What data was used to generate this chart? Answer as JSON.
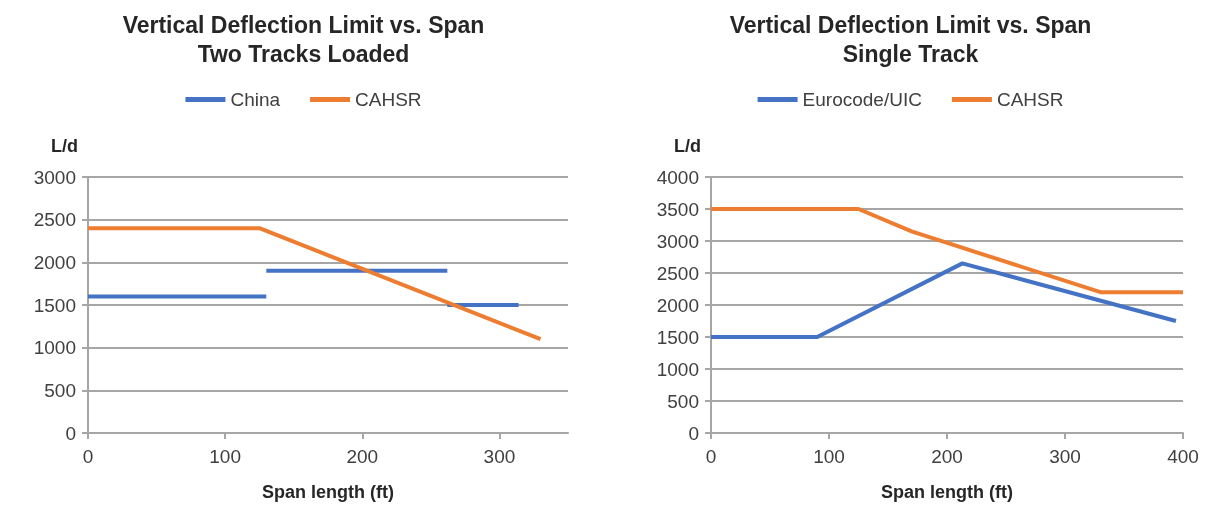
{
  "chart_data": [
    {
      "type": "line",
      "title": "Vertical Deflection Limit vs. Span",
      "subtitle": "Two Tracks Loaded",
      "xlabel": "Span length (ft)",
      "ylabel": "L/d",
      "xlim": [
        0,
        350
      ],
      "xticks": [
        0,
        100,
        200,
        300
      ],
      "ylim": [
        0,
        3000
      ],
      "yticks": [
        0,
        500,
        1000,
        1500,
        2000,
        2500,
        3000
      ],
      "grid": "y",
      "legend": "top",
      "marker": "none",
      "series": [
        {
          "name": "China",
          "color": "#4472c4",
          "x": [
            0,
            130
          ],
          "values": [
            1600,
            1600
          ]
        },
        {
          "color": "#4472c4",
          "x": [
            130,
            262
          ],
          "values": [
            1900,
            1900
          ]
        },
        {
          "color": "#4472c4",
          "x": [
            262,
            314
          ],
          "values": [
            1500,
            1500
          ]
        },
        {
          "name": "CAHSR",
          "color": "#ed7d31",
          "x": [
            0,
            125,
            330
          ],
          "values": [
            2400,
            2400,
            1100
          ]
        }
      ]
    },
    {
      "type": "line",
      "title": "Vertical Deflection Limit vs. Span",
      "subtitle": "Single Track",
      "xlabel": "Span length (ft)",
      "ylabel": "L/d",
      "xlim": [
        0,
        400
      ],
      "xticks": [
        0,
        100,
        200,
        300,
        400
      ],
      "ylim": [
        0,
        4000
      ],
      "yticks": [
        0,
        500,
        1000,
        1500,
        2000,
        2500,
        3000,
        3500,
        4000
      ],
      "grid": "y",
      "legend": "top",
      "marker": "none",
      "series": [
        {
          "name": "Eurocode/UIC",
          "color": "#4472c4",
          "x": [
            0,
            90,
            213,
            394
          ],
          "values": [
            1500,
            1500,
            2650,
            1750
          ]
        },
        {
          "name": "CAHSR",
          "color": "#ed7d31",
          "x": [
            0,
            125,
            170,
            330,
            400
          ],
          "values": [
            3500,
            3500,
            3150,
            2200,
            2200
          ]
        }
      ]
    }
  ]
}
